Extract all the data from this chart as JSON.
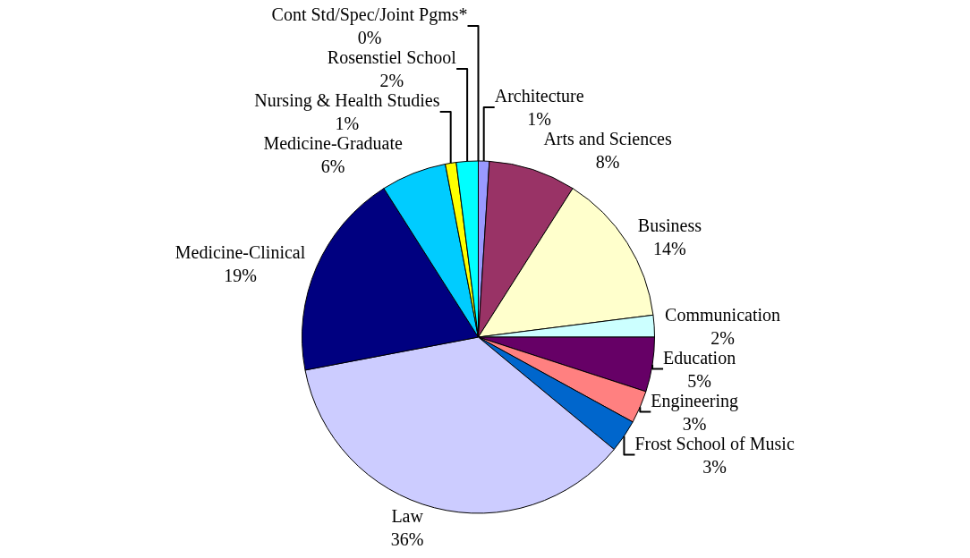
{
  "chart_data": {
    "type": "pie",
    "categories": [
      "Architecture",
      "Arts and Sciences",
      "Business",
      "Communication",
      "Education",
      "Engineering",
      "Frost School of Music",
      "Law",
      "Medicine-Clinical",
      "Medicine-Graduate",
      "Nursing & Health Studies",
      "Rosenstiel School",
      "Cont Std/Spec/Joint Pgms*"
    ],
    "values": [
      1,
      8,
      14,
      2,
      5,
      3,
      3,
      36,
      19,
      6,
      1,
      2,
      0
    ],
    "colors": [
      "#9999ff",
      "#993366",
      "#ffffcc",
      "#ccffff",
      "#660066",
      "#ff8080",
      "#0066cc",
      "#ccccff",
      "#000080",
      "#00ccff",
      "#ffff00",
      "#00ffff",
      "#ccffcc"
    ],
    "value_labels": [
      "1%",
      "8%",
      "14%",
      "2%",
      "5%",
      "3%",
      "3%",
      "36%",
      "19%",
      "6%",
      "1%",
      "2%",
      "0%"
    ],
    "legend": false
  }
}
